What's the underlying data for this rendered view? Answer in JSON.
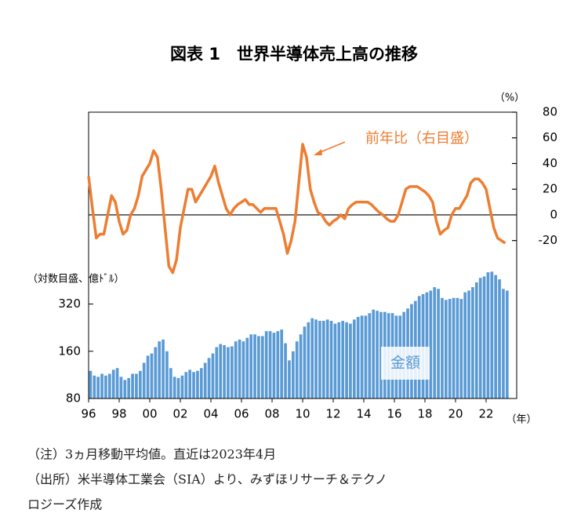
{
  "chart_data": {
    "type": "combo",
    "title": "図表 1　世界半導体売上高の推移",
    "y_label": "（対数目盛、億ﾄﾞﾙ）",
    "y2_label": "（%）",
    "x_label": "（年）",
    "notes": [
      "（注）3ヵ月移動平均値。直近は2023年4月",
      "（出所）米半導体工業会（SIA）より、みずほリサーチ＆テクノ",
      "ロジーズ作成"
    ],
    "x": [
      1996,
      1996.25,
      1996.5,
      1996.75,
      1997,
      1997.25,
      1997.5,
      1997.75,
      1998,
      1998.25,
      1998.5,
      1998.75,
      1999,
      1999.25,
      1999.5,
      1999.75,
      2000,
      2000.25,
      2000.5,
      2000.75,
      2001,
      2001.25,
      2001.5,
      2001.75,
      2002,
      2002.25,
      2002.5,
      2002.75,
      2003,
      2003.25,
      2003.5,
      2003.75,
      2004,
      2004.25,
      2004.5,
      2004.75,
      2005,
      2005.25,
      2005.5,
      2005.75,
      2006,
      2006.25,
      2006.5,
      2006.75,
      2007,
      2007.25,
      2007.5,
      2007.75,
      2008,
      2008.25,
      2008.5,
      2008.75,
      2009,
      2009.25,
      2009.5,
      2009.75,
      2010,
      2010.25,
      2010.5,
      2010.75,
      2011,
      2011.25,
      2011.5,
      2011.75,
      2012,
      2012.25,
      2012.5,
      2012.75,
      2013,
      2013.25,
      2013.5,
      2013.75,
      2014,
      2014.25,
      2014.5,
      2014.75,
      2015,
      2015.25,
      2015.5,
      2015.75,
      2016,
      2016.25,
      2016.5,
      2016.75,
      2017,
      2017.25,
      2017.5,
      2017.75,
      2018,
      2018.25,
      2018.5,
      2018.75,
      2019,
      2019.25,
      2019.5,
      2019.75,
      2020,
      2020.25,
      2020.5,
      2020.75,
      2021,
      2021.25,
      2021.5,
      2021.75,
      2022,
      2022.25,
      2022.5,
      2022.75,
      2023,
      2023.25
    ],
    "series": [
      {
        "name": "金額",
        "type": "bar",
        "color": "#5b9bd5",
        "values": [
          120,
          112,
          110,
          115,
          112,
          115,
          122,
          125,
          110,
          105,
          108,
          115,
          115,
          120,
          135,
          150,
          155,
          170,
          185,
          190,
          160,
          125,
          110,
          108,
          112,
          118,
          122,
          118,
          120,
          125,
          135,
          145,
          155,
          170,
          178,
          175,
          170,
          172,
          185,
          190,
          185,
          195,
          205,
          205,
          200,
          200,
          215,
          215,
          210,
          215,
          220,
          180,
          140,
          160,
          185,
          205,
          230,
          245,
          260,
          255,
          250,
          250,
          255,
          250,
          240,
          245,
          250,
          245,
          240,
          255,
          265,
          270,
          270,
          280,
          295,
          290,
          285,
          285,
          280,
          280,
          270,
          270,
          285,
          300,
          320,
          335,
          360,
          370,
          380,
          390,
          410,
          400,
          350,
          340,
          345,
          350,
          350,
          345,
          380,
          390,
          410,
          440,
          470,
          480,
          510,
          515,
          490,
          460,
          400,
          390
        ]
      },
      {
        "name": "前年比（右目盛）",
        "type": "line",
        "axis": "y2",
        "color": "#ed7d31",
        "values": [
          30,
          5,
          -18,
          -15,
          -15,
          0,
          15,
          10,
          -5,
          -15,
          -12,
          0,
          5,
          15,
          30,
          35,
          40,
          50,
          45,
          20,
          -10,
          -40,
          -45,
          -35,
          -10,
          5,
          20,
          20,
          10,
          15,
          20,
          25,
          30,
          38,
          25,
          15,
          5,
          0,
          5,
          8,
          10,
          12,
          8,
          8,
          5,
          2,
          5,
          5,
          5,
          5,
          -5,
          -15,
          -30,
          -20,
          -5,
          25,
          55,
          45,
          20,
          10,
          2,
          0,
          -5,
          -8,
          -5,
          -3,
          0,
          -3,
          5,
          8,
          10,
          10,
          10,
          10,
          8,
          5,
          2,
          0,
          -3,
          -5,
          -5,
          0,
          10,
          20,
          22,
          22,
          22,
          20,
          18,
          15,
          10,
          -5,
          -15,
          -12,
          -10,
          0,
          5,
          5,
          10,
          15,
          25,
          28,
          28,
          25,
          20,
          5,
          -10,
          -18,
          -20,
          -22
        ]
      }
    ],
    "xlim": [
      1996,
      2024
    ],
    "xticks": [
      {
        "value": 1996,
        "label": "96"
      },
      {
        "value": 1998,
        "label": "98"
      },
      {
        "value": 2000,
        "label": "00"
      },
      {
        "value": 2002,
        "label": "02"
      },
      {
        "value": 2004,
        "label": "04"
      },
      {
        "value": 2006,
        "label": "06"
      },
      {
        "value": 2008,
        "label": "08"
      },
      {
        "value": 2010,
        "label": "10"
      },
      {
        "value": 2012,
        "label": "12"
      },
      {
        "value": 2014,
        "label": "14"
      },
      {
        "value": 2016,
        "label": "16"
      },
      {
        "value": 2018,
        "label": "18"
      },
      {
        "value": 2020,
        "label": "20"
      },
      {
        "value": 2022,
        "label": "22"
      }
    ],
    "ylim": [
      80,
      5350
    ],
    "yticks": [
      80,
      160,
      320
    ],
    "log_y": true,
    "y2lim": [
      -143,
      80
    ],
    "y2ticks": [
      -20,
      0,
      20,
      40,
      60,
      80
    ]
  }
}
